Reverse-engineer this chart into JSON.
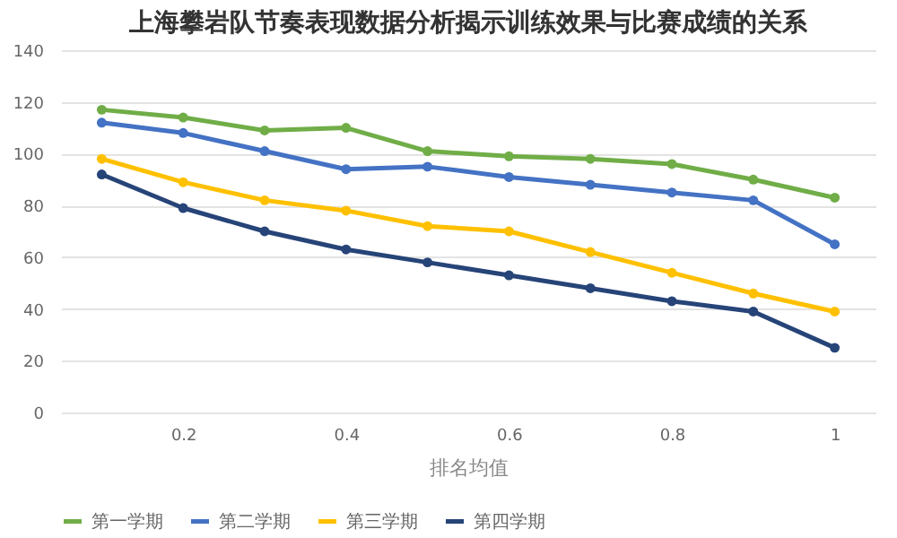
{
  "chart_data": {
    "type": "line",
    "title": "上海攀岩队节奏表现数据分析揭示训练效果与比赛成绩的关系",
    "xlabel": "排名均值",
    "x": [
      0.1,
      0.2,
      0.3,
      0.4,
      0.5,
      0.6,
      0.7,
      0.8,
      0.9,
      1
    ],
    "series": [
      {
        "name": "第一学期",
        "color": "#70ad47",
        "values": [
          117,
          114,
          109,
          110,
          101,
          99,
          98,
          96,
          90,
          83
        ]
      },
      {
        "name": "第二学期",
        "color": "#4472c4",
        "values": [
          112,
          108,
          101,
          94,
          95,
          91,
          88,
          85,
          82,
          65
        ]
      },
      {
        "name": "第三学期",
        "color": "#ffc000",
        "values": [
          98,
          89,
          82,
          78,
          72,
          70,
          62,
          54,
          46,
          39
        ]
      },
      {
        "name": "第四学期",
        "color": "#264478",
        "values": [
          92,
          79,
          70,
          63,
          58,
          53,
          48,
          43,
          39,
          25
        ]
      }
    ],
    "xlim": [
      0.05,
      1.05
    ],
    "xticks": [
      0.2,
      0.4,
      0.6,
      0.8,
      1
    ],
    "ylim": [
      0,
      140
    ],
    "yticks": [
      0,
      20,
      40,
      60,
      80,
      100,
      120,
      140
    ],
    "grid": "y",
    "legend": "bottom",
    "marker": "circle",
    "line_style": "solid"
  }
}
